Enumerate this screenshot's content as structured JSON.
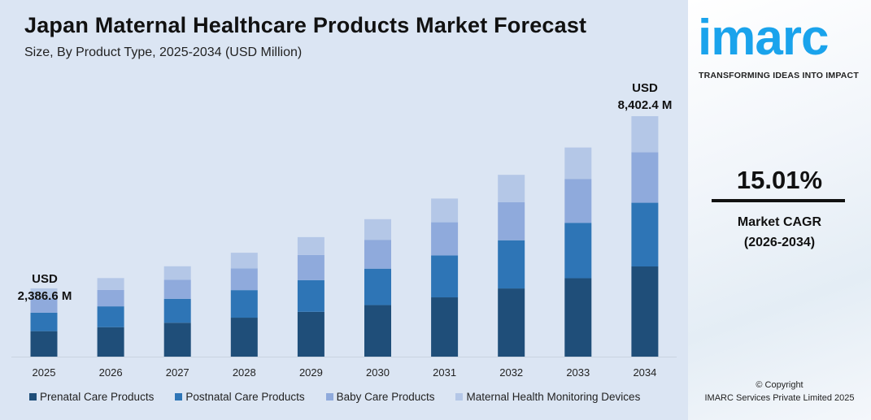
{
  "header": {
    "title": "Japan Maternal Healthcare Products Market Forecast",
    "subtitle": "Size, By Product Type, 2025-2034 (USD Million)"
  },
  "chart_data": {
    "type": "bar",
    "stacked": true,
    "title": "Japan Maternal Healthcare Products Market Forecast",
    "subtitle": "Size, By Product Type, 2025-2034 (USD Million)",
    "categories": [
      "2025",
      "2026",
      "2027",
      "2028",
      "2029",
      "2030",
      "2031",
      "2032",
      "2033",
      "2034"
    ],
    "series": [
      {
        "name": "Prenatal Care Products",
        "color": "#1f4e79",
        "values": [
          890.2,
          1029.4,
          1183.9,
          1361.6,
          1566.0,
          1801.1,
          2071.5,
          2382.4,
          2740.1,
          3150.9
        ]
      },
      {
        "name": "Postnatal Care Products",
        "color": "#2e75b6",
        "values": [
          644.4,
          727.4,
          836.6,
          962.2,
          1106.6,
          1272.8,
          1463.9,
          1683.5,
          1936.4,
          2226.6
        ]
      },
      {
        "name": "Baby Care Products",
        "color": "#8faadc",
        "values": [
          489.3,
          576.5,
          663.0,
          762.5,
          877.0,
          1008.6,
          1160.0,
          1334.1,
          1534.5,
          1764.5
        ]
      },
      {
        "name": "Maternal Health Monitoring Devices",
        "color": "#b4c7e7",
        "values": [
          362.7,
          411.7,
          473.5,
          544.7,
          626.4,
          720.5,
          828.6,
          953.0,
          1096.0,
          1260.4
        ]
      }
    ],
    "annotations": [
      {
        "category": "2025",
        "line1": "USD",
        "line2": "2,386.6 M"
      },
      {
        "category": "2034",
        "line1": "USD",
        "line2": "8,402.4 M"
      }
    ],
    "legend_position": "bottom",
    "grid": false,
    "y_axis_visible": false
  },
  "brand": {
    "logo": "imarc",
    "tagline": "TRANSFORMING IDEAS INTO IMPACT"
  },
  "cagr": {
    "value": "15.01%",
    "label1": "Market CAGR",
    "label2": "(2026-2034)"
  },
  "copyright": {
    "line1": "© Copyright",
    "line2": "IMARC Services Private Limited 2025"
  }
}
